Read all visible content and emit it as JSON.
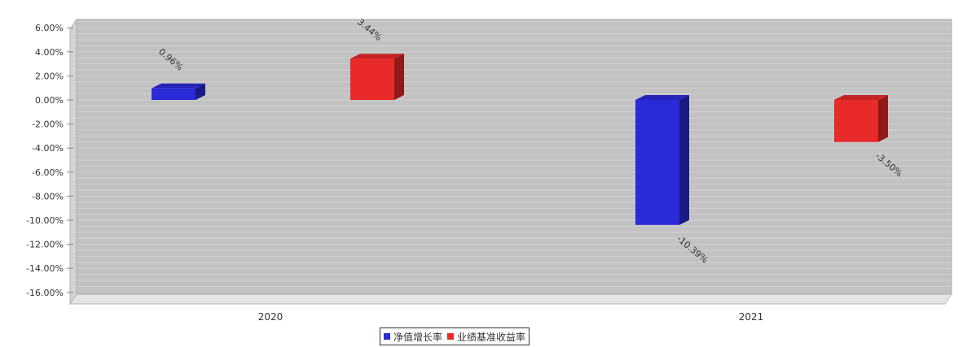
{
  "colors": {
    "plot_background": "#c2c2c2",
    "gridline": "#dedede",
    "series_blue": "#2a2ad8",
    "series_red": "#e82a2a"
  },
  "chart_data": {
    "type": "bar",
    "title": "",
    "xlabel": "",
    "ylabel": "",
    "categories": [
      "2020",
      "2021"
    ],
    "series": [
      {
        "name": "净值增长率",
        "color": "#2a2ad8",
        "values": [
          0.96,
          -10.39
        ],
        "labels": [
          "0.96%",
          "-10.39%"
        ]
      },
      {
        "name": "业绩基准收益率",
        "color": "#e82a2a",
        "values": [
          3.44,
          -3.5
        ],
        "labels": [
          "3.44%",
          "-3.50%"
        ]
      }
    ],
    "ylim": [
      -16,
      7
    ],
    "yticks": [
      6,
      4,
      2,
      0,
      -2,
      -4,
      -6,
      -8,
      -10,
      -12,
      -14,
      -16
    ],
    "ytick_labels": [
      "6.00%",
      "4.00%",
      "2.00%",
      "0.00%",
      "-2.00%",
      "-4.00%",
      "-6.00%",
      "-8.00%",
      "-10.00%",
      "-12.00%",
      "-14.00%",
      "-16.00%"
    ],
    "grid": true,
    "legend_position": "bottom-center",
    "three_d": true
  }
}
